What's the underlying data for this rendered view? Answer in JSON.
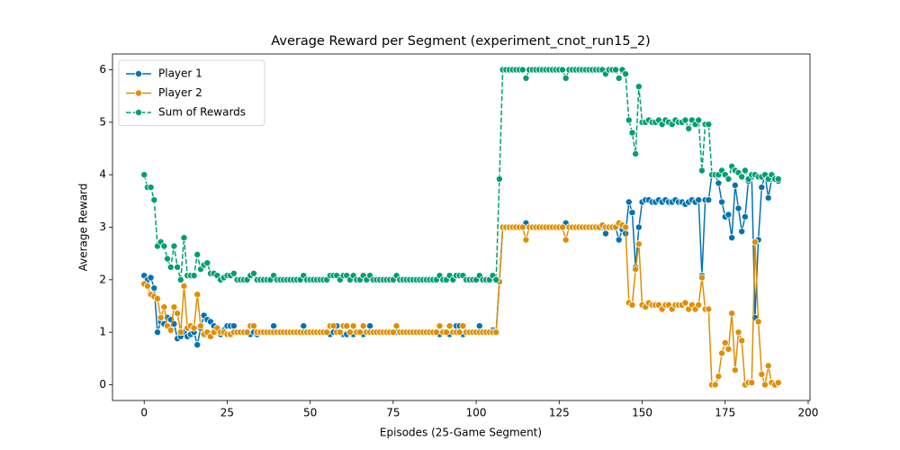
{
  "chart_data": {
    "type": "line",
    "title": "Average Reward per Segment (experiment_cnot_run15_2)",
    "x_label": "Episodes (25-Game Segment)",
    "y_label": "Average Reward",
    "xlim": [
      -9.55,
      200.55
    ],
    "ylim": [
      -0.3,
      6.3
    ],
    "xticks": [
      0,
      25,
      50,
      75,
      100,
      125,
      150,
      175,
      200
    ],
    "yticks": [
      0,
      1,
      2,
      3,
      4,
      5,
      6
    ],
    "grid": false,
    "legend": "upper left",
    "x": [
      0,
      1,
      2,
      3,
      4,
      5,
      6,
      7,
      8,
      9,
      10,
      11,
      12,
      13,
      14,
      15,
      16,
      17,
      18,
      19,
      20,
      21,
      22,
      23,
      24,
      25,
      26,
      27,
      28,
      29,
      30,
      31,
      32,
      33,
      34,
      35,
      36,
      37,
      38,
      39,
      40,
      41,
      42,
      43,
      44,
      45,
      46,
      47,
      48,
      49,
      50,
      51,
      52,
      53,
      54,
      55,
      56,
      57,
      58,
      59,
      60,
      61,
      62,
      63,
      64,
      65,
      66,
      67,
      68,
      69,
      70,
      71,
      72,
      73,
      74,
      75,
      76,
      77,
      78,
      79,
      80,
      81,
      82,
      83,
      84,
      85,
      86,
      87,
      88,
      89,
      90,
      91,
      92,
      93,
      94,
      95,
      96,
      97,
      98,
      99,
      100,
      101,
      102,
      103,
      104,
      105,
      106,
      107,
      108,
      109,
      110,
      111,
      112,
      113,
      114,
      115,
      116,
      117,
      118,
      119,
      120,
      121,
      122,
      123,
      124,
      125,
      126,
      127,
      128,
      129,
      130,
      131,
      132,
      133,
      134,
      135,
      136,
      137,
      138,
      139,
      140,
      141,
      142,
      143,
      144,
      145,
      146,
      147,
      148,
      149,
      150,
      151,
      152,
      153,
      154,
      155,
      156,
      157,
      158,
      159,
      160,
      161,
      162,
      163,
      164,
      165,
      166,
      167,
      168,
      169,
      170,
      171,
      172,
      173,
      174,
      175,
      176,
      177,
      178,
      179,
      180,
      181,
      182,
      183,
      184,
      185,
      186,
      187,
      188,
      189,
      190,
      191
    ],
    "series": [
      {
        "name": "Player 1",
        "color": "#0173b2",
        "linestyle": "solid",
        "values": [
          2.08,
          2.0,
          2.04,
          1.84,
          1.0,
          1.2,
          1.16,
          1.28,
          1.24,
          1.16,
          0.88,
          0.92,
          1.0,
          0.92,
          0.96,
          1.0,
          0.76,
          1.08,
          1.32,
          1.24,
          1.2,
          1.12,
          1.0,
          0.96,
          1.04,
          1.12,
          1.12,
          1.12,
          1.0,
          1.0,
          1.0,
          1.0,
          0.96,
          1.0,
          0.96,
          1.0,
          1.0,
          1.0,
          1.0,
          1.12,
          1.0,
          1.0,
          1.0,
          1.0,
          1.0,
          1.0,
          1.0,
          1.0,
          1.12,
          1.0,
          1.0,
          1.0,
          1.0,
          1.0,
          1.0,
          1.0,
          0.96,
          1.0,
          1.12,
          1.0,
          0.96,
          0.96,
          1.0,
          0.96,
          1.0,
          1.0,
          0.96,
          1.0,
          1.12,
          1.0,
          1.0,
          1.0,
          1.0,
          1.0,
          1.0,
          1.0,
          1.0,
          1.0,
          1.0,
          1.0,
          1.0,
          1.0,
          1.0,
          1.0,
          1.0,
          1.0,
          1.0,
          1.0,
          1.0,
          0.96,
          1.0,
          1.0,
          0.96,
          1.0,
          1.12,
          1.12,
          0.96,
          1.0,
          1.0,
          1.0,
          1.0,
          1.12,
          1.0,
          1.0,
          1.0,
          1.04,
          1.0,
          1.96,
          3.0,
          3.0,
          3.0,
          3.0,
          3.0,
          3.0,
          3.0,
          3.08,
          3.0,
          3.0,
          3.0,
          3.0,
          3.0,
          3.0,
          3.0,
          3.0,
          3.0,
          3.0,
          3.0,
          3.08,
          3.0,
          3.0,
          3.0,
          3.0,
          3.0,
          3.0,
          3.0,
          3.0,
          3.0,
          3.0,
          3.0,
          2.88,
          3.0,
          3.0,
          3.0,
          2.76,
          2.96,
          2.88,
          3.48,
          3.28,
          2.24,
          3.0,
          3.48,
          3.52,
          3.52,
          3.48,
          3.48,
          3.52,
          3.48,
          3.52,
          3.48,
          3.48,
          3.52,
          3.48,
          3.48,
          3.44,
          3.48,
          3.52,
          3.48,
          3.52,
          2.08,
          3.52,
          3.52,
          4.0,
          4.0,
          3.84,
          3.48,
          3.2,
          3.24,
          2.8,
          3.8,
          3.36,
          2.92,
          3.2,
          3.88,
          3.96,
          1.28,
          2.76,
          3.76,
          4.0,
          3.56,
          3.92,
          3.92,
          3.88
        ]
      },
      {
        "name": "Player 2",
        "color": "#de8f05",
        "linestyle": "solid",
        "values": [
          1.92,
          1.88,
          1.72,
          1.68,
          1.64,
          1.28,
          1.48,
          1.12,
          1.04,
          1.48,
          1.36,
          1.0,
          1.88,
          1.08,
          1.12,
          1.08,
          1.72,
          1.12,
          0.96,
          1.0,
          0.92,
          1.0,
          1.08,
          1.0,
          1.0,
          0.96,
          0.96,
          1.0,
          1.0,
          1.0,
          1.0,
          1.0,
          1.12,
          1.12,
          1.0,
          1.0,
          1.0,
          1.0,
          1.0,
          1.0,
          1.0,
          1.0,
          1.0,
          1.0,
          1.0,
          1.0,
          1.0,
          1.0,
          1.0,
          1.0,
          1.0,
          1.0,
          1.0,
          1.0,
          1.0,
          1.0,
          1.12,
          1.12,
          1.0,
          1.0,
          1.12,
          1.12,
          1.0,
          1.12,
          1.0,
          1.0,
          1.12,
          1.0,
          1.0,
          1.0,
          1.0,
          1.0,
          1.0,
          1.0,
          1.0,
          1.0,
          1.12,
          1.0,
          1.0,
          1.0,
          1.0,
          1.0,
          1.0,
          1.0,
          1.0,
          1.0,
          1.0,
          1.0,
          1.0,
          1.12,
          1.0,
          1.0,
          1.12,
          1.0,
          1.0,
          1.0,
          1.12,
          1.0,
          1.0,
          1.0,
          1.0,
          1.0,
          1.0,
          1.0,
          1.0,
          1.0,
          1.0,
          1.96,
          3.0,
          3.0,
          3.0,
          3.0,
          3.0,
          3.0,
          3.0,
          2.76,
          3.0,
          3.0,
          3.0,
          3.0,
          3.0,
          3.0,
          3.0,
          3.0,
          3.0,
          3.0,
          3.0,
          2.76,
          3.0,
          3.0,
          3.0,
          3.0,
          3.0,
          3.0,
          3.0,
          3.0,
          3.0,
          3.0,
          3.04,
          3.0,
          3.0,
          3.0,
          3.0,
          3.08,
          3.04,
          3.0,
          1.56,
          1.52,
          2.2,
          2.68,
          1.52,
          1.48,
          1.56,
          1.52,
          1.52,
          1.52,
          1.44,
          1.52,
          1.52,
          1.44,
          1.52,
          1.52,
          1.52,
          1.56,
          1.44,
          1.52,
          1.44,
          1.52,
          2.04,
          1.44,
          1.44,
          0.0,
          0.0,
          0.16,
          0.6,
          0.8,
          0.68,
          1.36,
          0.28,
          1.0,
          0.84,
          0.0,
          0.04,
          0.04,
          2.72,
          1.2,
          0.2,
          0.0,
          0.36,
          0.04,
          0.0,
          0.04
        ]
      },
      {
        "name": "Sum of Rewards",
        "color": "#029e73",
        "linestyle": "dashed",
        "values": [
          4.0,
          3.76,
          3.76,
          3.52,
          2.64,
          2.72,
          2.64,
          2.4,
          2.24,
          2.64,
          2.24,
          2.0,
          2.8,
          2.08,
          2.08,
          2.08,
          2.48,
          2.2,
          2.28,
          2.32,
          2.12,
          2.12,
          2.08,
          2.0,
          2.04,
          2.08,
          2.08,
          2.12,
          2.0,
          2.0,
          2.0,
          2.0,
          2.08,
          2.12,
          2.0,
          2.0,
          2.0,
          2.0,
          2.0,
          2.08,
          2.0,
          2.0,
          2.0,
          2.0,
          2.0,
          2.0,
          2.0,
          2.0,
          2.08,
          2.0,
          2.0,
          2.0,
          2.0,
          2.0,
          2.0,
          2.0,
          2.08,
          2.08,
          2.08,
          2.0,
          2.08,
          2.08,
          2.0,
          2.08,
          2.0,
          2.0,
          2.08,
          2.0,
          2.08,
          2.0,
          2.0,
          2.0,
          2.0,
          2.0,
          2.0,
          2.0,
          2.08,
          2.0,
          2.0,
          2.0,
          2.0,
          2.0,
          2.0,
          2.0,
          2.0,
          2.0,
          2.0,
          2.0,
          2.0,
          2.08,
          2.0,
          2.0,
          2.08,
          2.0,
          2.08,
          2.08,
          2.08,
          2.0,
          2.0,
          2.0,
          2.0,
          2.08,
          2.0,
          2.0,
          2.0,
          2.08,
          2.0,
          3.92,
          6.0,
          6.0,
          6.0,
          6.0,
          6.0,
          6.0,
          6.0,
          5.84,
          6.0,
          6.0,
          6.0,
          6.0,
          6.0,
          6.0,
          6.0,
          6.0,
          6.0,
          6.0,
          6.0,
          5.84,
          6.0,
          6.0,
          6.0,
          6.0,
          6.0,
          6.0,
          6.0,
          6.0,
          6.0,
          6.0,
          6.0,
          5.92,
          6.0,
          6.0,
          6.0,
          5.84,
          6.0,
          5.92,
          5.04,
          4.8,
          4.4,
          5.68,
          5.0,
          5.0,
          5.04,
          5.0,
          5.0,
          5.04,
          4.96,
          5.04,
          5.0,
          4.96,
          5.04,
          5.0,
          5.0,
          5.04,
          4.88,
          5.04,
          4.96,
          5.04,
          4.08,
          4.96,
          4.96,
          4.0,
          4.0,
          4.0,
          4.08,
          4.0,
          3.92,
          4.16,
          4.08,
          4.04,
          3.96,
          4.08,
          3.92,
          4.0,
          4.0,
          3.96,
          3.96,
          4.0,
          3.92,
          4.0,
          3.92,
          3.92
        ]
      }
    ]
  }
}
